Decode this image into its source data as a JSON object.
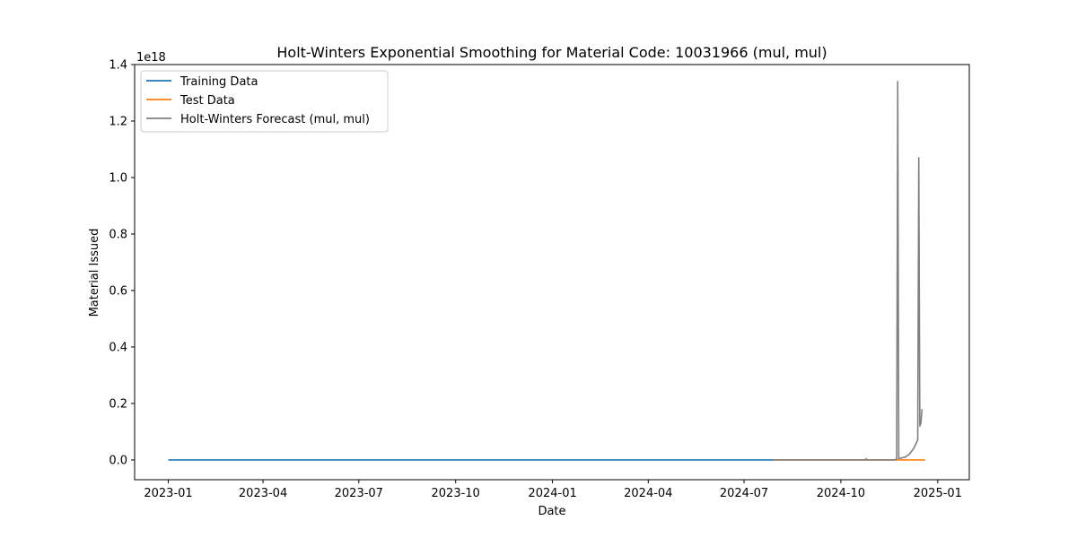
{
  "chart_data": {
    "type": "line",
    "title": "Holt-Winters Exponential Smoothing for Material Code: 10031966 (mul, mul)",
    "xlabel": "Date",
    "ylabel": "Material Issued",
    "y_offset_label": "1e18",
    "y_scale": 1e+18,
    "xlim": [
      "2022-11-30",
      "2025-01-31"
    ],
    "ylim": [
      -0.07,
      1.4
    ],
    "x_ticks": [
      "2023-01",
      "2023-04",
      "2023-07",
      "2023-10",
      "2024-01",
      "2024-04",
      "2024-07",
      "2024-10",
      "2025-01"
    ],
    "y_ticks": [
      "0.0",
      "0.2",
      "0.4",
      "0.6",
      "0.8",
      "1.0",
      "1.2",
      "1.4"
    ],
    "grid": false,
    "legend_position": "upper-left",
    "series": [
      {
        "name": "Training Data",
        "color": "#1f77b4",
        "points": [
          [
            "2023-01-01",
            0
          ],
          [
            "2024-07-29",
            0
          ]
        ]
      },
      {
        "name": "Test Data",
        "color": "#ff7f0e",
        "points": [
          [
            "2024-07-29",
            0
          ],
          [
            "2024-12-20",
            0
          ]
        ]
      },
      {
        "name": "Holt-Winters Forecast (mul, mul)",
        "color": "#808080",
        "points": [
          [
            "2024-07-29",
            0
          ],
          [
            "2024-10-24",
            0
          ],
          [
            "2024-10-25",
            0.004
          ],
          [
            "2024-10-26",
            0
          ],
          [
            "2024-11-20",
            0
          ],
          [
            "2024-11-23",
            0.002
          ],
          [
            "2024-11-24",
            1.34
          ],
          [
            "2024-11-25",
            0.005
          ],
          [
            "2024-12-01",
            0.01
          ],
          [
            "2024-12-05",
            0.02
          ],
          [
            "2024-12-09",
            0.04
          ],
          [
            "2024-12-13",
            0.07
          ],
          [
            "2024-12-14",
            1.07
          ],
          [
            "2024-12-15",
            0.12
          ],
          [
            "2024-12-16",
            0.13
          ],
          [
            "2024-12-17",
            0.18
          ]
        ]
      }
    ]
  }
}
